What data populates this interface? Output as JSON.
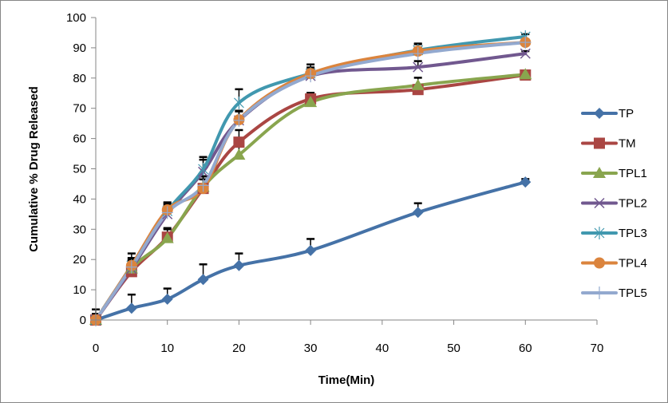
{
  "chart_data": {
    "type": "line",
    "title": "",
    "xlabel": "Time(Min)",
    "ylabel": "Cumulative % Drug Released",
    "xlim": [
      0,
      70
    ],
    "ylim": [
      0,
      100
    ],
    "x_ticks": [
      0,
      10,
      20,
      30,
      40,
      50,
      60,
      70
    ],
    "y_ticks": [
      0,
      10,
      20,
      30,
      40,
      50,
      60,
      70,
      80,
      90,
      100
    ],
    "grid": false,
    "legend_position": "right",
    "smoothed": true,
    "error_bars": true,
    "x": [
      0,
      5,
      10,
      15,
      20,
      30,
      45,
      60
    ],
    "series": [
      {
        "name": "TP",
        "color": "#4572A7",
        "marker": "diamond",
        "values": [
          0,
          3.9,
          6.9,
          13.4,
          18.0,
          23.0,
          35.6,
          45.6
        ],
        "errors": [
          3.5,
          4.5,
          3.5,
          5.0,
          4.0,
          3.8,
          3.0,
          1.0
        ]
      },
      {
        "name": "TM",
        "color": "#AA4643",
        "marker": "square",
        "values": [
          0,
          16.0,
          27.4,
          43.5,
          58.8,
          73.1,
          76.2,
          81.0
        ],
        "errors": [
          2.0,
          2.5,
          3.0,
          4.0,
          4.0,
          2.0,
          1.5,
          0.5
        ]
      },
      {
        "name": "TPL1",
        "color": "#89A54E",
        "marker": "triangle",
        "values": [
          0,
          17.0,
          27.0,
          44.0,
          54.6,
          72.0,
          77.6,
          81.2
        ],
        "errors": [
          2.0,
          2.5,
          3.0,
          3.5,
          4.0,
          2.0,
          2.5,
          0.5
        ]
      },
      {
        "name": "TPL2",
        "color": "#71588F",
        "marker": "x",
        "values": [
          0,
          17.0,
          35.0,
          49.0,
          66.0,
          80.7,
          83.6,
          88.1
        ],
        "errors": [
          2.0,
          2.5,
          2.5,
          4.0,
          3.0,
          2.0,
          2.0,
          0.8
        ]
      },
      {
        "name": "TPL3",
        "color": "#4198AF",
        "marker": "asterisk",
        "values": [
          0,
          18.0,
          36.0,
          49.9,
          71.8,
          81.5,
          89.2,
          93.7
        ],
        "errors": [
          2.0,
          2.5,
          2.5,
          4.0,
          4.5,
          2.0,
          2.0,
          0.8
        ]
      },
      {
        "name": "TPL4",
        "color": "#DB843D",
        "marker": "circle",
        "values": [
          0,
          18.0,
          36.4,
          43.5,
          66.2,
          81.5,
          88.9,
          91.8
        ],
        "errors": [
          2.0,
          4.0,
          2.5,
          3.0,
          3.0,
          3.0,
          2.5,
          0.8
        ]
      },
      {
        "name": "TPL5",
        "color": "#93A9CF",
        "marker": "plus",
        "values": [
          0,
          17.5,
          35.5,
          44.5,
          66.0,
          80.7,
          88.1,
          91.8
        ],
        "errors": [
          2.0,
          2.5,
          2.5,
          3.0,
          3.0,
          2.0,
          2.0,
          0.8
        ]
      }
    ]
  }
}
